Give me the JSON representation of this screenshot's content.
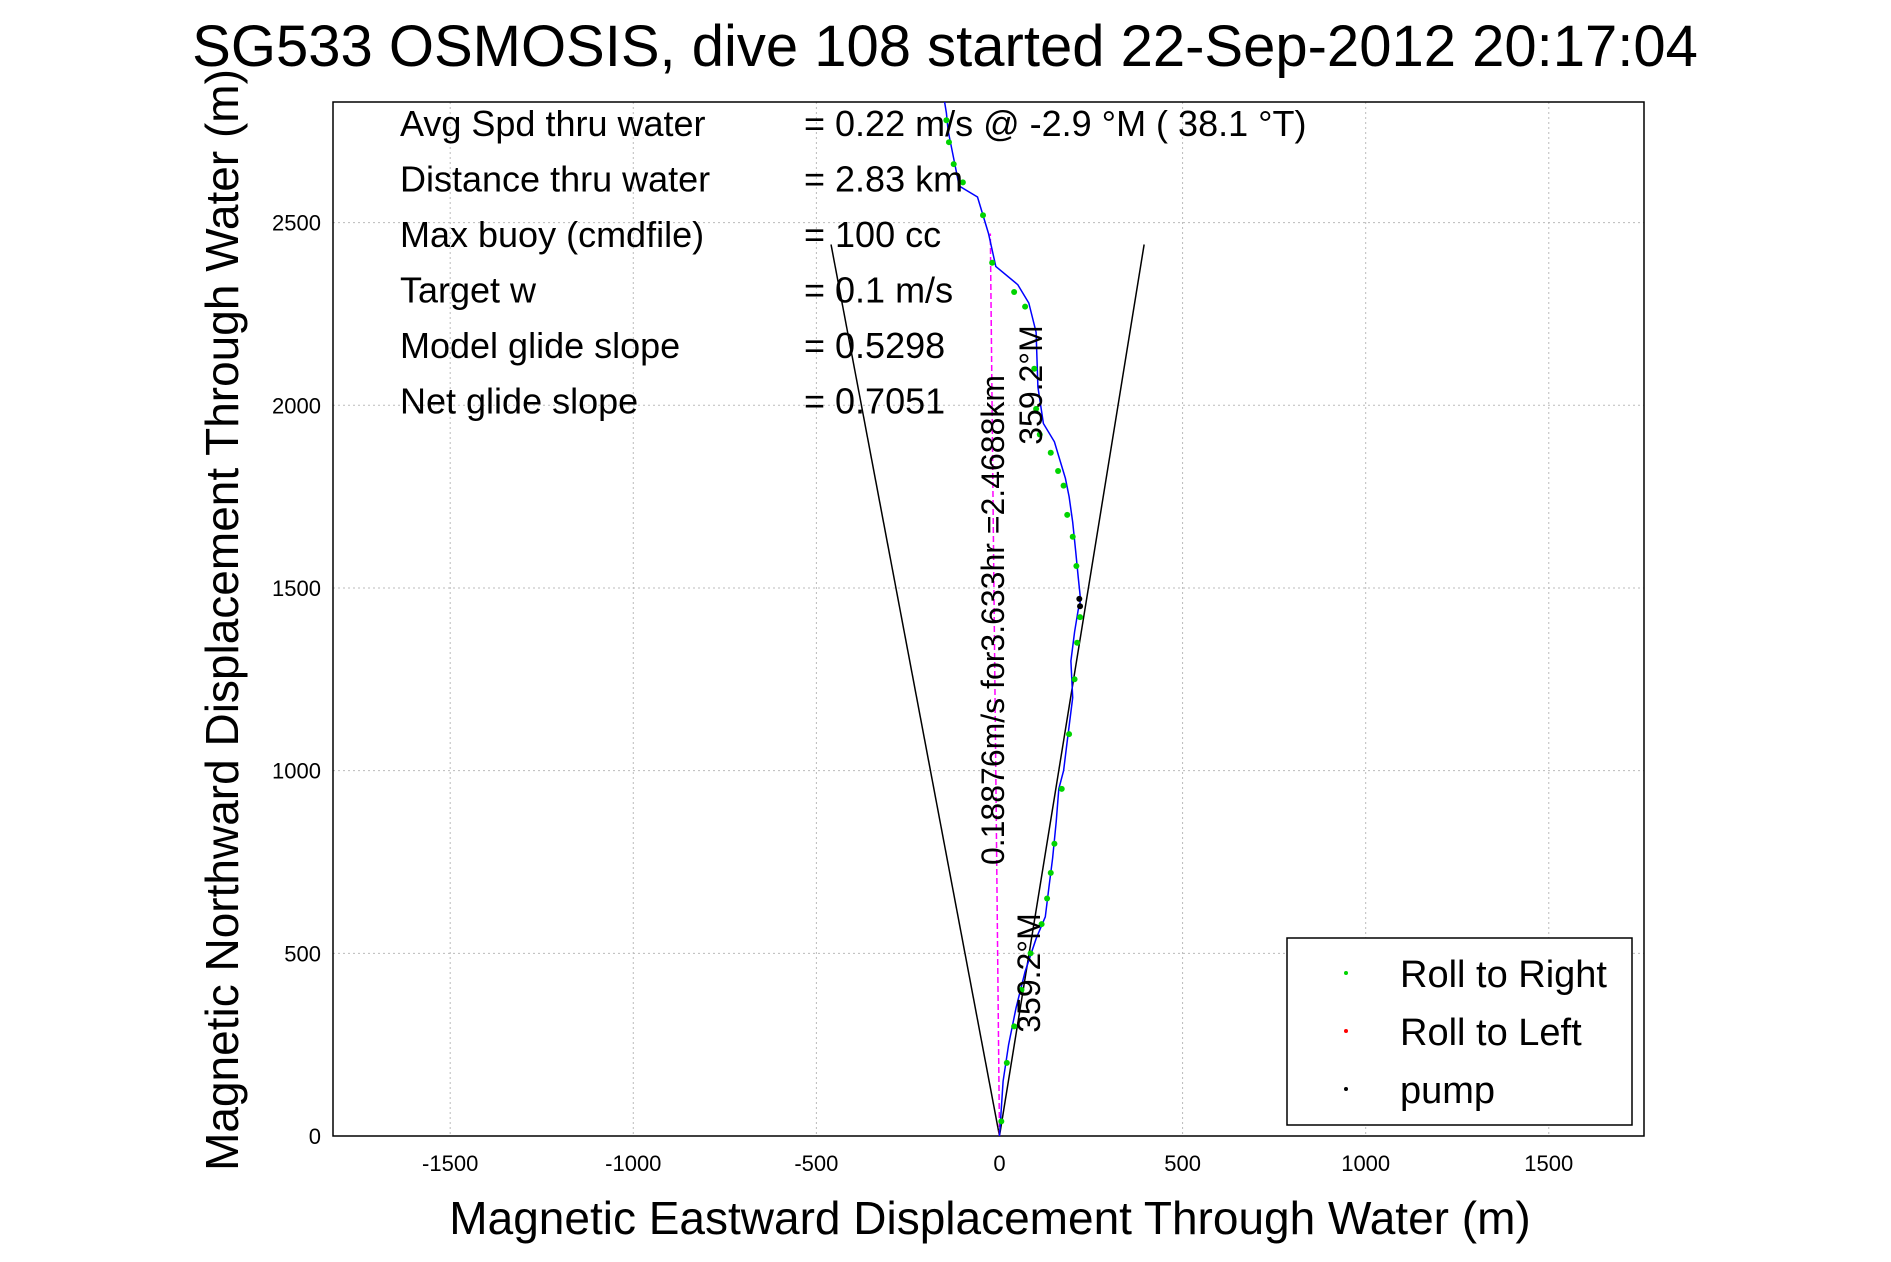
{
  "chart_data": {
    "type": "line",
    "title": "SG533 OSMOSIS, dive 108 started 22-Sep-2012 20:17:04",
    "xlabel": "Magnetic Eastward Displacement Through Water (m)",
    "ylabel": "Magnetic Northward Displacement Through Water (m)",
    "xlim": [
      -1820,
      1760
    ],
    "ylim": [
      0,
      2830
    ],
    "xticks": [
      -1500,
      -1000,
      -500,
      0,
      500,
      1000,
      1500
    ],
    "yticks": [
      0,
      500,
      1000,
      1500,
      2000,
      2500
    ],
    "grid": true,
    "info_lines": [
      {
        "label": "Avg Spd thru water",
        "value": "=  0.22 m/s @  -2.9 °M ( 38.1 °T)"
      },
      {
        "label": "Distance thru water",
        "value": "=  2.83 km"
      },
      {
        "label": "Max buoy (cmdfile)",
        "value": "= 100 cc"
      },
      {
        "label": "Target w",
        "value": "= 0.1 m/s"
      },
      {
        "label": "Model glide slope",
        "value": "= 0.5298"
      },
      {
        "label": "Net glide slope",
        "value": "= 0.7051"
      }
    ],
    "annotations": {
      "current_vector": "0.18876m/s for3.633hr =2.4688km",
      "heading_upper": "359.2°M",
      "heading_lower": "359.2°M"
    },
    "track": {
      "x": [
        0,
        10,
        25,
        45,
        70,
        100,
        125,
        135,
        145,
        155,
        162,
        175,
        185,
        200,
        195,
        205,
        215,
        220,
        220,
        215,
        208,
        200,
        190,
        180,
        165,
        150,
        120,
        105,
        100,
        80,
        50,
        -10,
        -30,
        -60,
        -110,
        -130,
        -140,
        -145,
        -150
      ],
      "y": [
        0,
        150,
        250,
        350,
        450,
        540,
        600,
        680,
        760,
        860,
        950,
        1000,
        1080,
        1200,
        1300,
        1380,
        1440,
        1460,
        1480,
        1530,
        1600,
        1680,
        1750,
        1800,
        1850,
        1900,
        1950,
        2050,
        2200,
        2280,
        2330,
        2380,
        2470,
        2570,
        2600,
        2700,
        2750,
        2800,
        2830
      ]
    },
    "current_line": {
      "x": [
        0,
        -25
      ],
      "y": [
        0,
        2470
      ]
    },
    "cone": {
      "left": {
        "x": [
          0,
          -460
        ],
        "y": [
          0,
          2440
        ]
      },
      "right": {
        "x": [
          0,
          395
        ],
        "y": [
          0,
          2440
        ]
      }
    },
    "series": [
      {
        "name": "Roll to Right",
        "color": "#00d400",
        "x": [
          5,
          20,
          40,
          60,
          85,
          115,
          130,
          140,
          150,
          170,
          190,
          205,
          212,
          220,
          210,
          200,
          185,
          175,
          160,
          140,
          110,
          100,
          95,
          70,
          40,
          -20,
          -45,
          -100,
          -125,
          -138,
          -145
        ],
        "y": [
          40,
          200,
          300,
          400,
          500,
          580,
          650,
          720,
          800,
          950,
          1100,
          1250,
          1350,
          1420,
          1560,
          1640,
          1700,
          1780,
          1820,
          1870,
          1920,
          1990,
          2100,
          2270,
          2310,
          2390,
          2520,
          2610,
          2660,
          2720,
          2780
        ]
      },
      {
        "name": "Roll to Left",
        "color": "#ff0000",
        "x": [],
        "y": []
      },
      {
        "name": "pump",
        "color": "#000000",
        "x": [
          220,
          218
        ],
        "y": [
          1450,
          1470
        ]
      }
    ],
    "legend": {
      "placement": "bottom-right",
      "entries": [
        "Roll to Right",
        "Roll to Left",
        "pump"
      ]
    },
    "colors": {
      "track": "#0000ff",
      "current": "#ff00ff",
      "cone": "#000000",
      "grid": "#bbbbbb"
    }
  }
}
